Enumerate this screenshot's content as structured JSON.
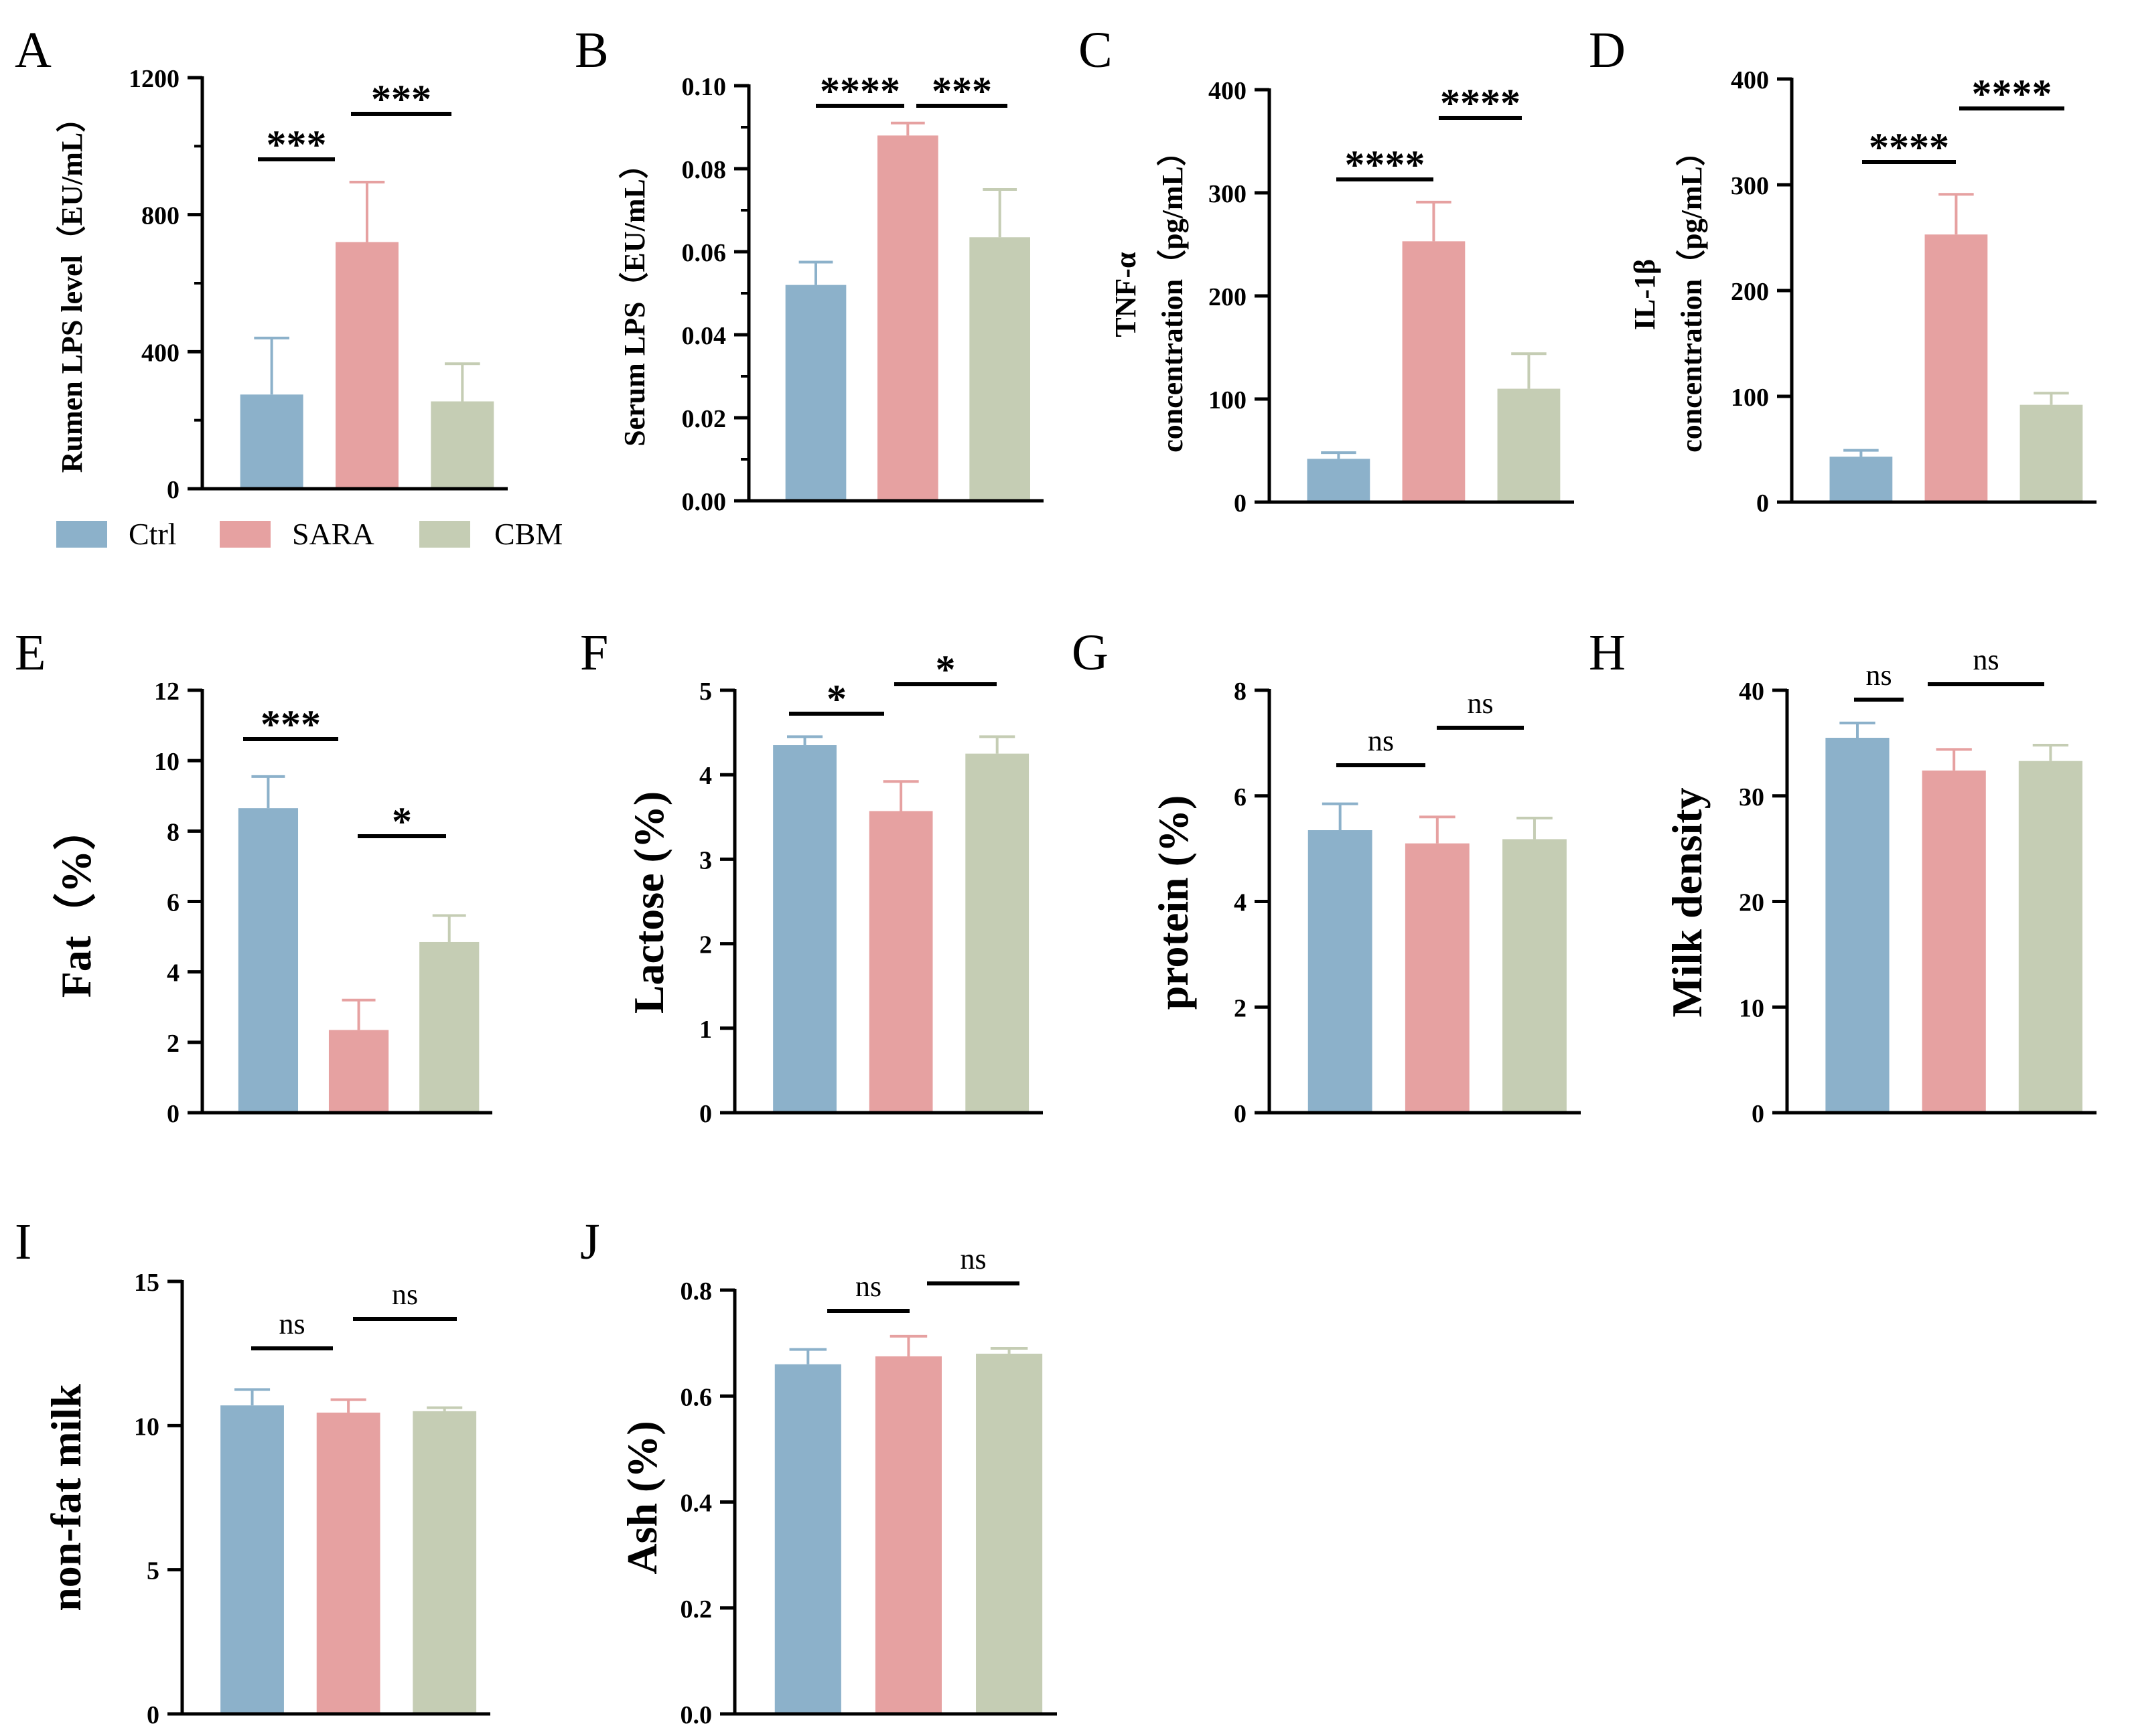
{
  "colors": {
    "Ctrl": "#8CB1CA",
    "SARA": "#E6A1A1",
    "CBM": "#C5CDB4"
  },
  "legend": {
    "items": [
      {
        "label": "Ctrl",
        "color": "#8CB1CA"
      },
      {
        "label": "SARA",
        "color": "#E6A1A1"
      },
      {
        "label": "CBM",
        "color": "#C5CDB4"
      }
    ]
  },
  "chart_data": [
    {
      "panel": "A",
      "type": "bar",
      "categories": [
        "Ctrl",
        "SARA",
        "CBM"
      ],
      "values": [
        275,
        720,
        255
      ],
      "errors": [
        165,
        175,
        110
      ],
      "ylabel": [
        "Rumen LPS level（EU/mL）"
      ],
      "ylim": [
        0,
        1200
      ],
      "yticks": [
        0,
        400,
        800,
        1200
      ],
      "ytick_labels": [
        "0",
        "400",
        "800",
        "1200"
      ],
      "minor_ticks": true,
      "significance": [
        {
          "pair": [
            0,
            1
          ],
          "label": "***"
        },
        {
          "pair": [
            1,
            2
          ],
          "label": "***"
        }
      ]
    },
    {
      "panel": "B",
      "type": "bar",
      "categories": [
        "Ctrl",
        "SARA",
        "CBM"
      ],
      "values": [
        0.052,
        0.088,
        0.0635
      ],
      "errors": [
        0.0055,
        0.003,
        0.0115
      ],
      "ylabel": [
        "Serum LPS（EU/mL）"
      ],
      "ylim": [
        0,
        0.1
      ],
      "yticks": [
        0,
        0.02,
        0.04,
        0.06,
        0.08,
        0.1
      ],
      "ytick_labels": [
        "0.00",
        "0.02",
        "0.04",
        "0.06",
        "0.08",
        "0.10"
      ],
      "minor_ticks": true,
      "significance": [
        {
          "pair": [
            0,
            1
          ],
          "label": "****"
        },
        {
          "pair": [
            1,
            2
          ],
          "label": "***"
        }
      ]
    },
    {
      "panel": "C",
      "type": "bar",
      "categories": [
        "Ctrl",
        "SARA",
        "CBM"
      ],
      "values": [
        42,
        253,
        110
      ],
      "errors": [
        6,
        38,
        34
      ],
      "ylabel": [
        "TNF-α",
        "concentration（pg/mL）"
      ],
      "ylim": [
        0,
        400
      ],
      "yticks": [
        0,
        100,
        200,
        300,
        400
      ],
      "ytick_labels": [
        "0",
        "100",
        "200",
        "300",
        "400"
      ],
      "minor_ticks": false,
      "significance": [
        {
          "pair": [
            0,
            1
          ],
          "label": "****"
        },
        {
          "pair": [
            1,
            2
          ],
          "label": "****"
        }
      ]
    },
    {
      "panel": "D",
      "type": "bar",
      "categories": [
        "Ctrl",
        "SARA",
        "CBM"
      ],
      "values": [
        43,
        253,
        92
      ],
      "errors": [
        6,
        38,
        11
      ],
      "ylabel": [
        "IL-1β",
        "concentration（pg/mL）"
      ],
      "ylim": [
        0,
        400
      ],
      "yticks": [
        0,
        100,
        200,
        300,
        400
      ],
      "ytick_labels": [
        "0",
        "100",
        "200",
        "300",
        "400"
      ],
      "minor_ticks": false,
      "significance": [
        {
          "pair": [
            0,
            1
          ],
          "label": "****"
        },
        {
          "pair": [
            1,
            2
          ],
          "label": "****"
        }
      ]
    },
    {
      "panel": "E",
      "type": "bar",
      "categories": [
        "Ctrl",
        "SARA",
        "CBM"
      ],
      "values": [
        8.65,
        2.35,
        4.85
      ],
      "errors": [
        0.9,
        0.85,
        0.75
      ],
      "ylabel": [
        "Fat（%）"
      ],
      "ylim": [
        0,
        12
      ],
      "yticks": [
        0,
        2,
        4,
        6,
        8,
        10,
        12
      ],
      "ytick_labels": [
        "0",
        "2",
        "4",
        "6",
        "8",
        "10",
        "12"
      ],
      "minor_ticks": false,
      "significance": [
        {
          "pair": [
            0,
            1
          ],
          "label": "***"
        },
        {
          "pair": [
            1,
            2
          ],
          "label": "*"
        }
      ]
    },
    {
      "panel": "F",
      "type": "bar",
      "categories": [
        "Ctrl",
        "SARA",
        "CBM"
      ],
      "values": [
        4.35,
        3.57,
        4.25
      ],
      "errors": [
        0.1,
        0.35,
        0.2
      ],
      "ylabel": [
        "Lactose (%)"
      ],
      "ylim": [
        0,
        5
      ],
      "yticks": [
        0,
        1,
        2,
        3,
        4,
        5
      ],
      "ytick_labels": [
        "0",
        "1",
        "2",
        "3",
        "4",
        "5"
      ],
      "minor_ticks": false,
      "significance": [
        {
          "pair": [
            0,
            1
          ],
          "label": "*"
        },
        {
          "pair": [
            1,
            2
          ],
          "label": "*"
        }
      ]
    },
    {
      "panel": "G",
      "type": "bar",
      "categories": [
        "Ctrl",
        "SARA",
        "CBM"
      ],
      "values": [
        5.35,
        5.1,
        5.18
      ],
      "errors": [
        0.5,
        0.5,
        0.4
      ],
      "ylabel": [
        "protein (%)"
      ],
      "ylim": [
        0,
        8
      ],
      "yticks": [
        0,
        2,
        4,
        6,
        8
      ],
      "ytick_labels": [
        "0",
        "2",
        "4",
        "6",
        "8"
      ],
      "minor_ticks": false,
      "significance": [
        {
          "pair": [
            0,
            1
          ],
          "label": "ns"
        },
        {
          "pair": [
            1,
            2
          ],
          "label": "ns"
        }
      ]
    },
    {
      "panel": "H",
      "type": "bar",
      "categories": [
        "Ctrl",
        "SARA",
        "CBM"
      ],
      "values": [
        35.5,
        32.4,
        33.3
      ],
      "errors": [
        1.4,
        2.0,
        1.5
      ],
      "ylabel": [
        "Milk density"
      ],
      "ylim": [
        0,
        40
      ],
      "yticks": [
        0,
        10,
        20,
        30,
        40
      ],
      "ytick_labels": [
        "0",
        "10",
        "20",
        "30",
        "40"
      ],
      "minor_ticks": false,
      "significance": [
        {
          "pair": [
            0,
            1
          ],
          "label": "ns"
        },
        {
          "pair": [
            1,
            2
          ],
          "label": "ns"
        }
      ]
    },
    {
      "panel": "I",
      "type": "bar",
      "categories": [
        "Ctrl",
        "SARA",
        "CBM"
      ],
      "values": [
        10.7,
        10.45,
        10.5
      ],
      "errors": [
        0.55,
        0.45,
        0.12
      ],
      "ylabel": [
        "non-fat milk"
      ],
      "ylim": [
        0,
        15
      ],
      "yticks": [
        0,
        5,
        10,
        15
      ],
      "ytick_labels": [
        "0",
        "5",
        "10",
        "15"
      ],
      "minor_ticks": false,
      "significance": [
        {
          "pair": [
            0,
            1
          ],
          "label": "ns"
        },
        {
          "pair": [
            1,
            2
          ],
          "label": "ns"
        }
      ]
    },
    {
      "panel": "J",
      "type": "bar",
      "categories": [
        "Ctrl",
        "SARA",
        "CBM"
      ],
      "values": [
        0.66,
        0.675,
        0.68
      ],
      "errors": [
        0.028,
        0.038,
        0.01
      ],
      "ylabel": [
        "Ash (%)"
      ],
      "ylim": [
        0,
        0.8
      ],
      "yticks": [
        0,
        0.2,
        0.4,
        0.6,
        0.8
      ],
      "ytick_labels": [
        "0.0",
        "0.2",
        "0.4",
        "0.6",
        "0.8"
      ],
      "minor_ticks": false,
      "significance": [
        {
          "pair": [
            0,
            1
          ],
          "label": "ns"
        },
        {
          "pair": [
            1,
            2
          ],
          "label": "ns"
        }
      ]
    }
  ]
}
